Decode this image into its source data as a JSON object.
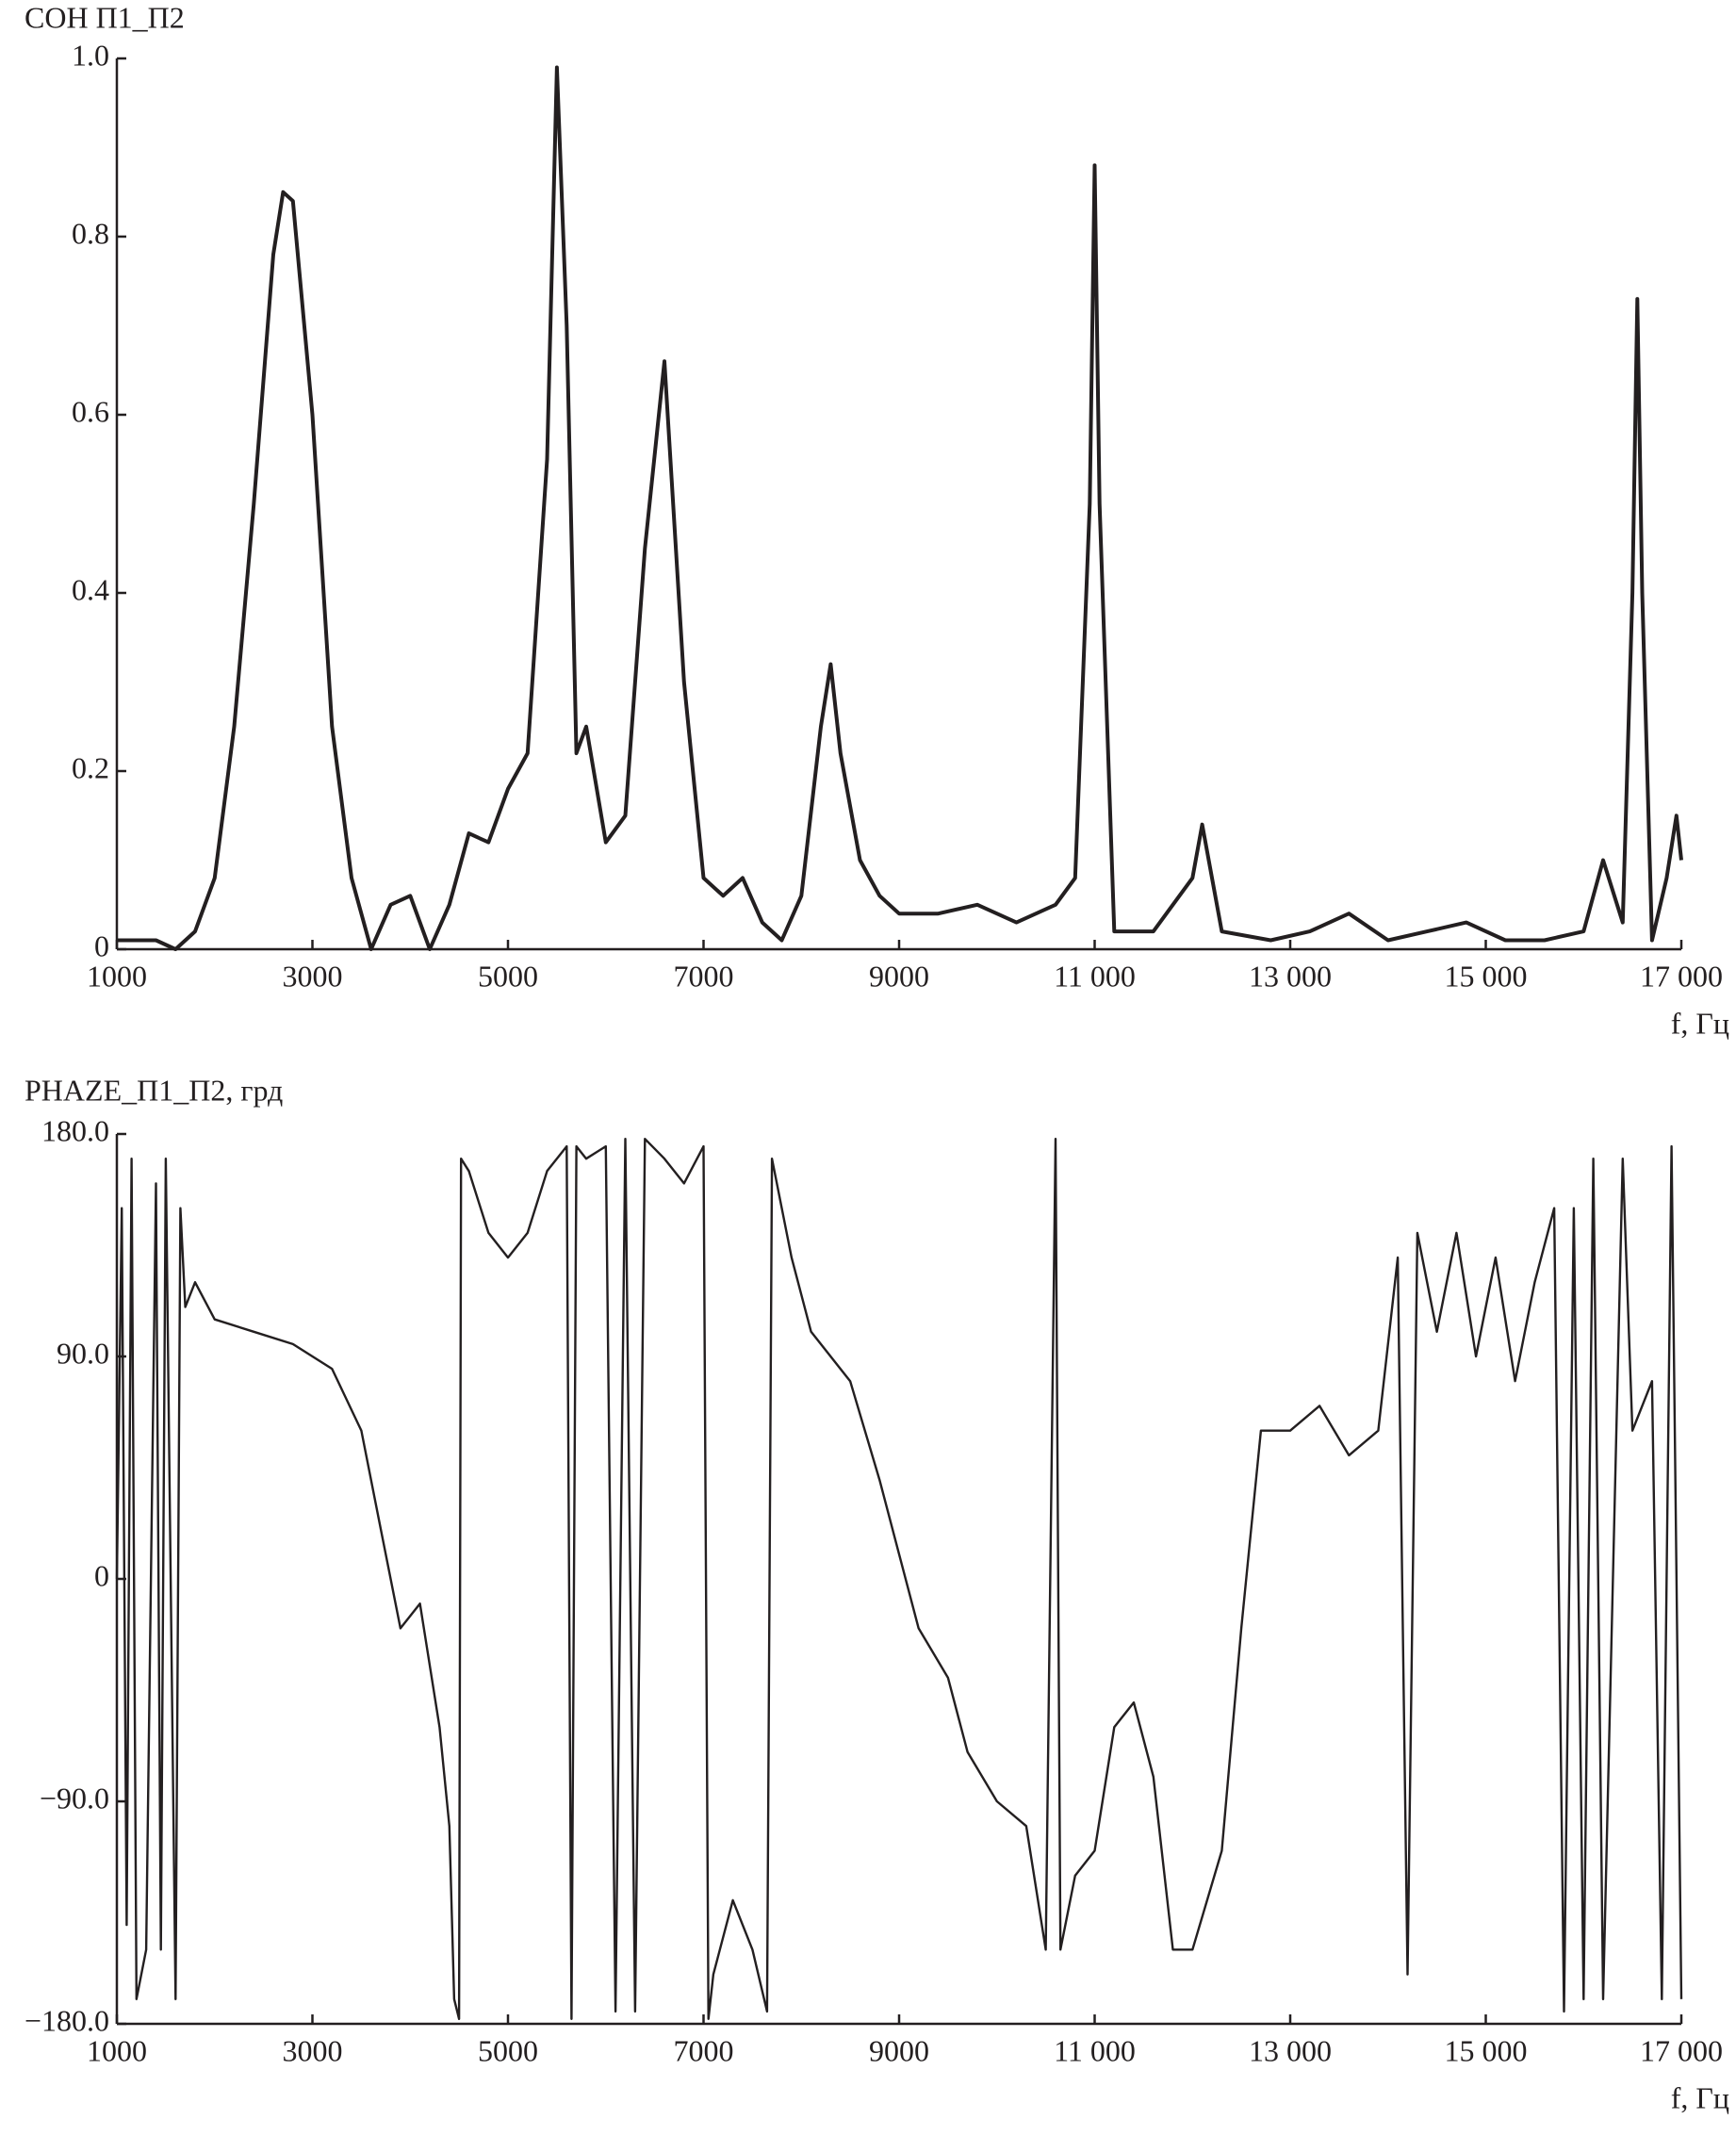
{
  "chart_data": [
    {
      "type": "line",
      "ylabel": "СОН П1_П2",
      "xlabel": "f, Гц",
      "color": "#231f20",
      "x": [
        1000,
        1200,
        1400,
        1600,
        1800,
        2000,
        2200,
        2400,
        2600,
        2700,
        2800,
        3000,
        3200,
        3400,
        3600,
        3800,
        4000,
        4200,
        4400,
        4600,
        4800,
        5000,
        5200,
        5400,
        5500,
        5600,
        5700,
        5800,
        6000,
        6200,
        6400,
        6600,
        6800,
        7000,
        7200,
        7400,
        7600,
        7800,
        8000,
        8200,
        8300,
        8400,
        8600,
        8800,
        9000,
        9400,
        9800,
        10200,
        10600,
        10800,
        10950,
        11000,
        11050,
        11200,
        11600,
        12000,
        12100,
        12300,
        12800,
        13200,
        13600,
        14000,
        14400,
        14800,
        15200,
        15600,
        16000,
        16200,
        16400,
        16500,
        16550,
        16600,
        16700,
        16850,
        16950,
        17000
      ],
      "values": [
        0.01,
        0.01,
        0.01,
        0.0,
        0.02,
        0.08,
        0.25,
        0.5,
        0.78,
        0.85,
        0.84,
        0.6,
        0.25,
        0.08,
        0.0,
        0.05,
        0.06,
        0.0,
        0.05,
        0.13,
        0.12,
        0.18,
        0.22,
        0.55,
        0.99,
        0.7,
        0.22,
        0.25,
        0.12,
        0.15,
        0.45,
        0.66,
        0.3,
        0.08,
        0.06,
        0.08,
        0.03,
        0.01,
        0.06,
        0.25,
        0.32,
        0.22,
        0.1,
        0.06,
        0.04,
        0.04,
        0.05,
        0.03,
        0.05,
        0.08,
        0.5,
        0.88,
        0.5,
        0.02,
        0.02,
        0.08,
        0.14,
        0.02,
        0.01,
        0.02,
        0.04,
        0.01,
        0.02,
        0.03,
        0.01,
        0.01,
        0.02,
        0.1,
        0.03,
        0.4,
        0.73,
        0.4,
        0.01,
        0.08,
        0.15,
        0.1
      ],
      "xlim": [
        1000,
        17000
      ],
      "xticks": [
        1000,
        3000,
        5000,
        7000,
        9000,
        {
          "value": 11000,
          "label": "11 000"
        },
        {
          "value": 13000,
          "label": "13 000"
        },
        {
          "value": 15000,
          "label": "15 000"
        },
        {
          "value": 17000,
          "label": "17 000"
        }
      ],
      "ylim": [
        0,
        1
      ],
      "yticks": [
        0,
        0.2,
        0.4,
        0.6,
        0.8,
        {
          "value": 1,
          "label": "1.0"
        }
      ]
    },
    {
      "type": "line",
      "ylabel": "PHAZE_П1_П2, грд",
      "xlabel": "f, Гц",
      "color": "#231f20",
      "x": [
        1000,
        1050,
        1100,
        1150,
        1200,
        1300,
        1400,
        1450,
        1500,
        1600,
        1650,
        1700,
        1800,
        2000,
        2400,
        2800,
        3200,
        3500,
        3700,
        3900,
        4100,
        4300,
        4400,
        4450,
        4500,
        4520,
        4600,
        4800,
        5000,
        5200,
        5400,
        5600,
        5650,
        5700,
        5800,
        6000,
        6100,
        6200,
        6300,
        6400,
        6600,
        6800,
        7000,
        7050,
        7100,
        7300,
        7500,
        7650,
        7700,
        7900,
        8100,
        8500,
        8800,
        9000,
        9200,
        9500,
        9700,
        10000,
        10300,
        10500,
        10600,
        10650,
        10800,
        11000,
        11200,
        11400,
        11600,
        11800,
        12000,
        12300,
        12500,
        12700,
        13000,
        13300,
        13600,
        13900,
        14100,
        14200,
        14300,
        14500,
        14700,
        14900,
        15100,
        15300,
        15500,
        15700,
        15800,
        15900,
        16000,
        16100,
        16200,
        16400,
        16500,
        16700,
        16800,
        16900,
        17000
      ],
      "values": [
        0,
        150,
        -140,
        170,
        -170,
        -150,
        160,
        -150,
        170,
        -170,
        150,
        110,
        120,
        105,
        100,
        95,
        85,
        60,
        20,
        -20,
        -10,
        -60,
        -100,
        -170,
        -178,
        170,
        165,
        140,
        130,
        140,
        165,
        175,
        -178,
        175,
        170,
        175,
        -175,
        178,
        -175,
        178,
        170,
        160,
        175,
        -178,
        -160,
        -130,
        -150,
        -175,
        170,
        130,
        100,
        80,
        40,
        10,
        -20,
        -40,
        -70,
        -90,
        -100,
        -150,
        178,
        -150,
        -120,
        -110,
        -60,
        -50,
        -80,
        -150,
        -150,
        -110,
        -20,
        60,
        60,
        70,
        50,
        60,
        130,
        -160,
        140,
        100,
        140,
        90,
        130,
        80,
        120,
        150,
        -175,
        150,
        -170,
        170,
        -170,
        170,
        60,
        80,
        -170,
        175,
        -170
      ],
      "xlim": [
        1000,
        17000
      ],
      "xticks": [
        1000,
        3000,
        5000,
        7000,
        9000,
        {
          "value": 11000,
          "label": "11 000"
        },
        {
          "value": 13000,
          "label": "13 000"
        },
        {
          "value": 15000,
          "label": "15 000"
        },
        {
          "value": 17000,
          "label": "17 000"
        }
      ],
      "ylim": [
        -180,
        180
      ],
      "yticks": [
        {
          "value": 180,
          "label": "180.0"
        },
        {
          "value": 90,
          "label": "90.0"
        },
        0,
        {
          "value": -90,
          "label": "−90.0"
        },
        {
          "value": -180,
          "label": "−180.0"
        }
      ]
    }
  ]
}
